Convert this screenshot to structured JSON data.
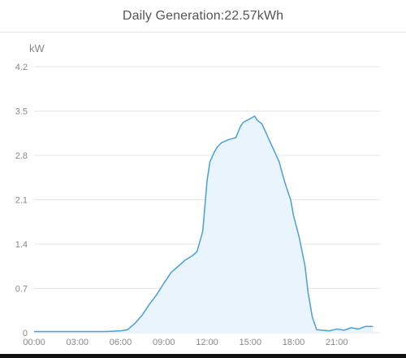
{
  "header": {
    "title": "Daily Generation:22.57kWh"
  },
  "chart_data": {
    "type": "area",
    "ylabel": "kW",
    "ylim": [
      0,
      4.2
    ],
    "yticks": [
      "4.2",
      "3.5",
      "2.8",
      "2.1",
      "1.4",
      "0.7",
      "0"
    ],
    "xlim": [
      0,
      24
    ],
    "xticks": [
      "00:00",
      "03:00",
      "06:00",
      "09:00",
      "12:00",
      "15:00",
      "18:00",
      "21:00"
    ],
    "grid": true,
    "colors": {
      "line": "#4a9fdc",
      "fill": "#e9f4fc",
      "grid": "#e6e6e6",
      "axis_text": "#888888"
    },
    "series": [
      {
        "x": [
          0,
          1,
          2,
          3,
          4,
          5,
          6,
          6.5,
          7,
          7.5,
          8,
          8.5,
          9,
          9.5,
          10,
          10.5,
          11,
          11.3,
          11.7,
          12,
          12.2,
          12.5,
          12.7,
          13,
          13.5,
          14,
          14.3,
          14.5,
          15,
          15.3,
          15.5,
          15.8,
          16,
          16.3,
          16.6,
          17,
          17.3,
          17.5,
          17.8,
          18,
          18.4,
          18.8,
          19,
          19.3,
          19.6,
          20,
          20.5,
          21,
          21.5,
          22,
          22.5,
          23,
          23.5
        ],
        "y": [
          0.02,
          0.02,
          0.02,
          0.02,
          0.02,
          0.02,
          0.03,
          0.05,
          0.15,
          0.28,
          0.45,
          0.6,
          0.78,
          0.95,
          1.05,
          1.15,
          1.22,
          1.28,
          1.6,
          2.4,
          2.7,
          2.85,
          2.93,
          3.0,
          3.05,
          3.08,
          3.25,
          3.32,
          3.38,
          3.42,
          3.35,
          3.3,
          3.2,
          3.05,
          2.9,
          2.7,
          2.45,
          2.3,
          2.1,
          1.85,
          1.5,
          1.05,
          0.65,
          0.25,
          0.05,
          0.04,
          0.03,
          0.06,
          0.04,
          0.08,
          0.06,
          0.1,
          0.1
        ]
      }
    ]
  }
}
